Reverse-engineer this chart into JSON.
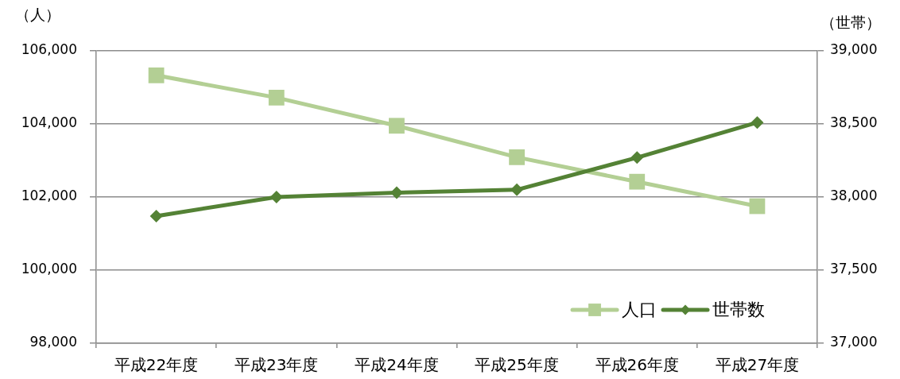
{
  "chart_data": {
    "type": "line",
    "categories": [
      "平成22年度",
      "平成23年度",
      "平成24年度",
      "平成25年度",
      "平成26年度",
      "平成27年度"
    ],
    "ylabel": "（人）",
    "y2label": "（世帯）",
    "series": [
      {
        "name": "人口",
        "color": "#b3cf94",
        "marker": "square",
        "values": [
          105330,
          104720,
          103950,
          103090,
          102420,
          101750
        ]
      },
      {
        "name": "世帯数",
        "color": "#548235",
        "marker": "diamond",
        "axis": "y2",
        "values": [
          37870,
          38000,
          38030,
          38050,
          38270,
          38510
        ]
      }
    ],
    "ylim": [
      98000,
      106000
    ],
    "yticks": [
      {
        "value": 98000,
        "label": "98,000"
      },
      {
        "value": 100000,
        "label": "100,000"
      },
      {
        "value": 102000,
        "label": "102,000"
      },
      {
        "value": 104000,
        "label": "104,000"
      },
      {
        "value": 106000,
        "label": "106,000"
      }
    ],
    "y2lim": [
      37000,
      39000
    ],
    "y2ticks": [
      {
        "value": 37000,
        "label": "37,000"
      },
      {
        "value": 37500,
        "label": "37,500"
      },
      {
        "value": 38000,
        "label": "38,000"
      },
      {
        "value": 38500,
        "label": "38,500"
      },
      {
        "value": 39000,
        "label": "39,000"
      }
    ],
    "grid": "y",
    "legend": "bottom right"
  }
}
